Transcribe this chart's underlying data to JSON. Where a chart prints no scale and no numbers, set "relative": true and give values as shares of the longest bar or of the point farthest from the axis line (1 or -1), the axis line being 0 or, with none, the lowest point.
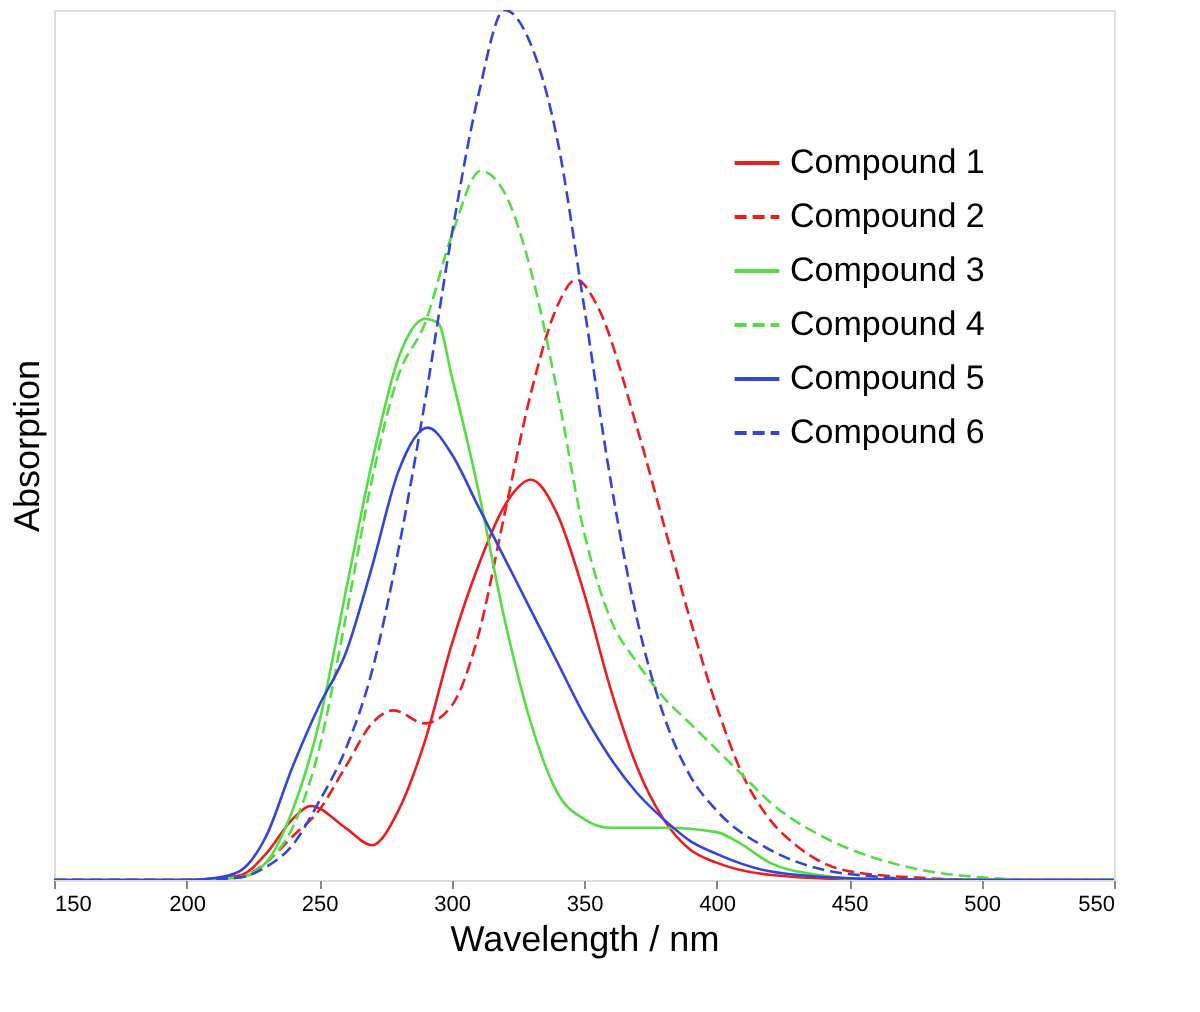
{
  "chart_data": {
    "type": "line",
    "relative": true,
    "xlabel": "Wavelength / nm",
    "ylabel": "Absorption",
    "xlim": [
      150,
      550
    ],
    "xticks": [
      150,
      200,
      250,
      300,
      350,
      400,
      450,
      500,
      550
    ],
    "grid": false,
    "legend": "top right",
    "series": [
      {
        "name": "Compound 1",
        "color": "#ee1c1c",
        "line_style": "solid",
        "x": [
          150,
          200,
          220,
          230,
          240,
          247,
          260,
          270,
          280,
          290,
          300,
          310,
          320,
          330,
          340,
          350,
          360,
          370,
          380,
          390,
          400,
          420,
          450,
          500,
          550
        ],
        "values": [
          0,
          0,
          0.005,
          0.03,
          0.07,
          0.085,
          0.06,
          0.04,
          0.08,
          0.16,
          0.27,
          0.36,
          0.43,
          0.46,
          0.42,
          0.33,
          0.22,
          0.13,
          0.07,
          0.035,
          0.02,
          0.006,
          0.001,
          0,
          0
        ]
      },
      {
        "name": "Compound 2",
        "color": "#ee1c1c",
        "line_style": "dashed",
        "x": [
          150,
          200,
          220,
          230,
          240,
          250,
          260,
          270,
          278,
          290,
          300,
          310,
          320,
          330,
          340,
          347,
          355,
          370,
          380,
          390,
          400,
          410,
          420,
          430,
          450,
          480,
          500,
          550
        ],
        "values": [
          0,
          0,
          0.003,
          0.02,
          0.05,
          0.08,
          0.13,
          0.18,
          0.195,
          0.18,
          0.2,
          0.28,
          0.42,
          0.56,
          0.66,
          0.69,
          0.66,
          0.52,
          0.41,
          0.3,
          0.2,
          0.12,
          0.07,
          0.04,
          0.01,
          0.002,
          0,
          0
        ]
      },
      {
        "name": "Compound 3",
        "color": "#55dd44",
        "line_style": "solid",
        "x": [
          150,
          200,
          220,
          230,
          240,
          250,
          260,
          270,
          280,
          290,
          295,
          300,
          310,
          320,
          330,
          340,
          350,
          360,
          380,
          400,
          410,
          420,
          440,
          460,
          550
        ],
        "values": [
          0,
          0,
          0.003,
          0.02,
          0.08,
          0.18,
          0.33,
          0.48,
          0.6,
          0.645,
          0.64,
          0.58,
          0.45,
          0.3,
          0.18,
          0.1,
          0.07,
          0.06,
          0.06,
          0.055,
          0.04,
          0.02,
          0.005,
          0,
          0
        ]
      },
      {
        "name": "Compound 4",
        "color": "#55dd44",
        "line_style": "dashed",
        "x": [
          150,
          200,
          220,
          230,
          240,
          250,
          260,
          270,
          280,
          290,
          300,
          311,
          320,
          330,
          340,
          350,
          360,
          370,
          380,
          390,
          400,
          410,
          420,
          440,
          460,
          480,
          500,
          520,
          550
        ],
        "values": [
          0,
          0,
          0.003,
          0.02,
          0.06,
          0.15,
          0.3,
          0.46,
          0.58,
          0.64,
          0.74,
          0.815,
          0.79,
          0.7,
          0.56,
          0.4,
          0.3,
          0.25,
          0.21,
          0.18,
          0.15,
          0.12,
          0.09,
          0.05,
          0.025,
          0.01,
          0.003,
          0,
          0
        ]
      },
      {
        "name": "Compound 5",
        "color": "#3344dd",
        "line_style": "solid",
        "x": [
          150,
          200,
          210,
          220,
          230,
          240,
          250,
          260,
          270,
          280,
          291,
          300,
          310,
          320,
          330,
          340,
          350,
          360,
          370,
          380,
          390,
          400,
          420,
          450,
          480,
          550
        ],
        "values": [
          0,
          0,
          0.002,
          0.01,
          0.05,
          0.13,
          0.2,
          0.26,
          0.36,
          0.47,
          0.52,
          0.49,
          0.43,
          0.37,
          0.31,
          0.25,
          0.19,
          0.14,
          0.1,
          0.07,
          0.045,
          0.03,
          0.01,
          0.002,
          0,
          0
        ]
      },
      {
        "name": "Compound 6",
        "color": "#3344dd",
        "line_style": "dashed",
        "x": [
          150,
          200,
          220,
          230,
          240,
          250,
          260,
          270,
          280,
          290,
          300,
          310,
          320,
          330,
          340,
          350,
          360,
          370,
          380,
          390,
          400,
          420,
          440,
          460,
          480,
          550
        ],
        "values": [
          0,
          0,
          0.003,
          0.015,
          0.04,
          0.09,
          0.15,
          0.24,
          0.38,
          0.55,
          0.74,
          0.9,
          1.0,
          0.96,
          0.85,
          0.66,
          0.46,
          0.3,
          0.19,
          0.12,
          0.08,
          0.035,
          0.012,
          0.004,
          0,
          0
        ]
      }
    ]
  }
}
